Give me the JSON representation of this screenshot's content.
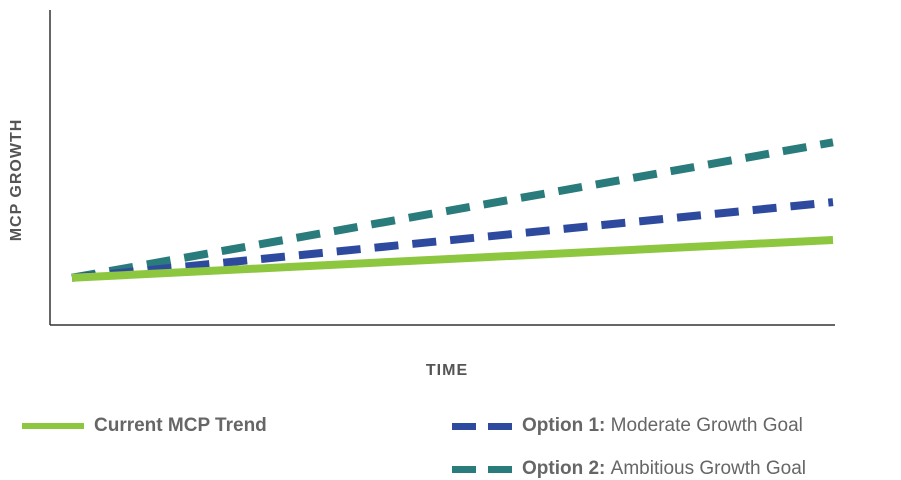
{
  "chart_data": {
    "type": "line",
    "title": "",
    "xlabel": "TIME",
    "ylabel": "MCP GROWTH",
    "x": [
      0,
      1
    ],
    "xlim": [
      0,
      1
    ],
    "ylim": [
      0,
      1
    ],
    "show_ticks": false,
    "grid": false,
    "legend_position": "bottom",
    "series": [
      {
        "name": "Current MCP Trend",
        "values": [
          0.15,
          0.27
        ],
        "color": "#8dc63f",
        "style": "solid"
      },
      {
        "name": "Option 1: Moderate Growth Goal",
        "values": [
          0.15,
          0.39
        ],
        "color": "#2e4a9e",
        "style": "dashed"
      },
      {
        "name": "Option 2: Ambitious Growth Goal",
        "values": [
          0.15,
          0.58
        ],
        "color": "#2a7b7b",
        "style": "dashed"
      }
    ]
  },
  "legend": {
    "current": {
      "label": "Current MCP Trend"
    },
    "option1": {
      "prefix": "Option 1:",
      "text": "Moderate Growth Goal"
    },
    "option2": {
      "prefix": "Option 2:",
      "text": "Ambitious Growth Goal"
    }
  }
}
